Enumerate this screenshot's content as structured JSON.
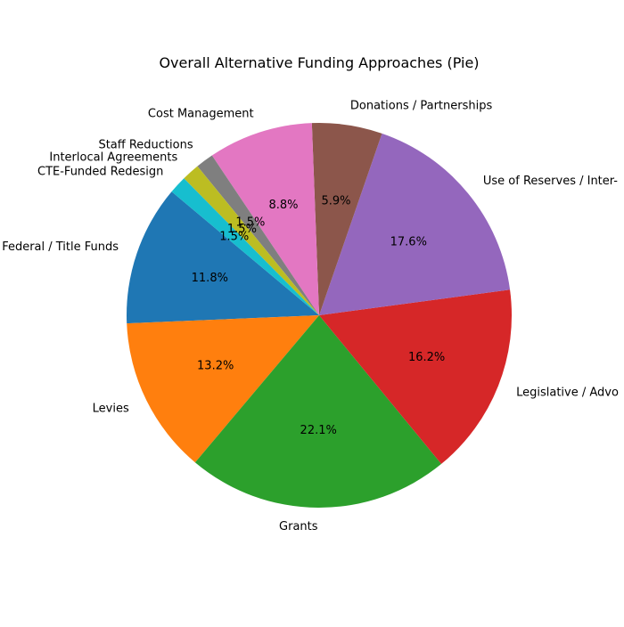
{
  "chart_data": {
    "type": "pie",
    "title": "Overall Alternative Funding Approaches (Pie)",
    "start_angle_deg": 140,
    "direction": "counterclockwise",
    "slices": [
      {
        "label": "Federal / Title Funds",
        "value": 11.8,
        "pct_text": "11.8%",
        "color": "#1f77b4"
      },
      {
        "label": "Levies",
        "value": 13.2,
        "pct_text": "13.2%",
        "color": "#ff7f0e"
      },
      {
        "label": "Grants",
        "value": 22.1,
        "pct_text": "22.1%",
        "color": "#2ca02c"
      },
      {
        "label": "Legislative / Advo",
        "value": 16.2,
        "pct_text": "16.2%",
        "color": "#d62728"
      },
      {
        "label": "Use of Reserves / Inter-",
        "value": 17.6,
        "pct_text": "17.6%",
        "color": "#9467bd"
      },
      {
        "label": "Donations / Partnerships",
        "value": 5.9,
        "pct_text": "5.9%",
        "color": "#8c564b"
      },
      {
        "label": "Cost Management",
        "value": 8.8,
        "pct_text": "8.8%",
        "color": "#e377c2"
      },
      {
        "label": "Staff Reductions",
        "value": 1.5,
        "pct_text": "1.5%",
        "color": "#7f7f7f"
      },
      {
        "label": "Interlocal Agreements",
        "value": 1.5,
        "pct_text": "1.5%",
        "color": "#bcbd22"
      },
      {
        "label": "CTE-Funded Redesign",
        "value": 1.5,
        "pct_text": "1.5%",
        "color": "#17becf"
      }
    ]
  }
}
